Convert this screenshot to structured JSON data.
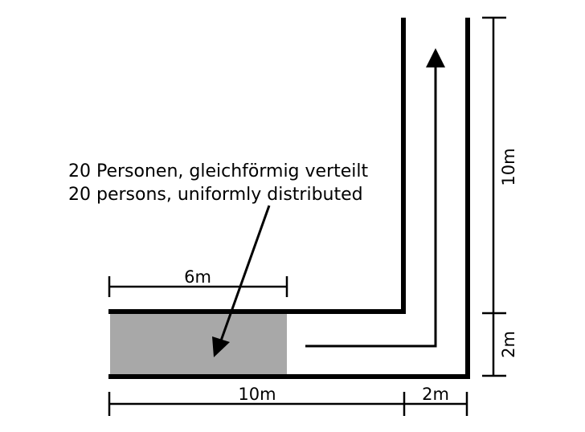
{
  "description": {
    "line_de": "20 Personen, gleichförmig verteilt",
    "line_en": "20 persons, uniformly distributed"
  },
  "dimensions": {
    "occupied_width": "6m",
    "corridor_length": "10m",
    "corridor_width": "2m",
    "vertical_length": "10m",
    "vertical_width": "2m"
  },
  "colors": {
    "wall": "#000000",
    "occupied_area": "#a8a8a8",
    "background": "#ffffff"
  }
}
